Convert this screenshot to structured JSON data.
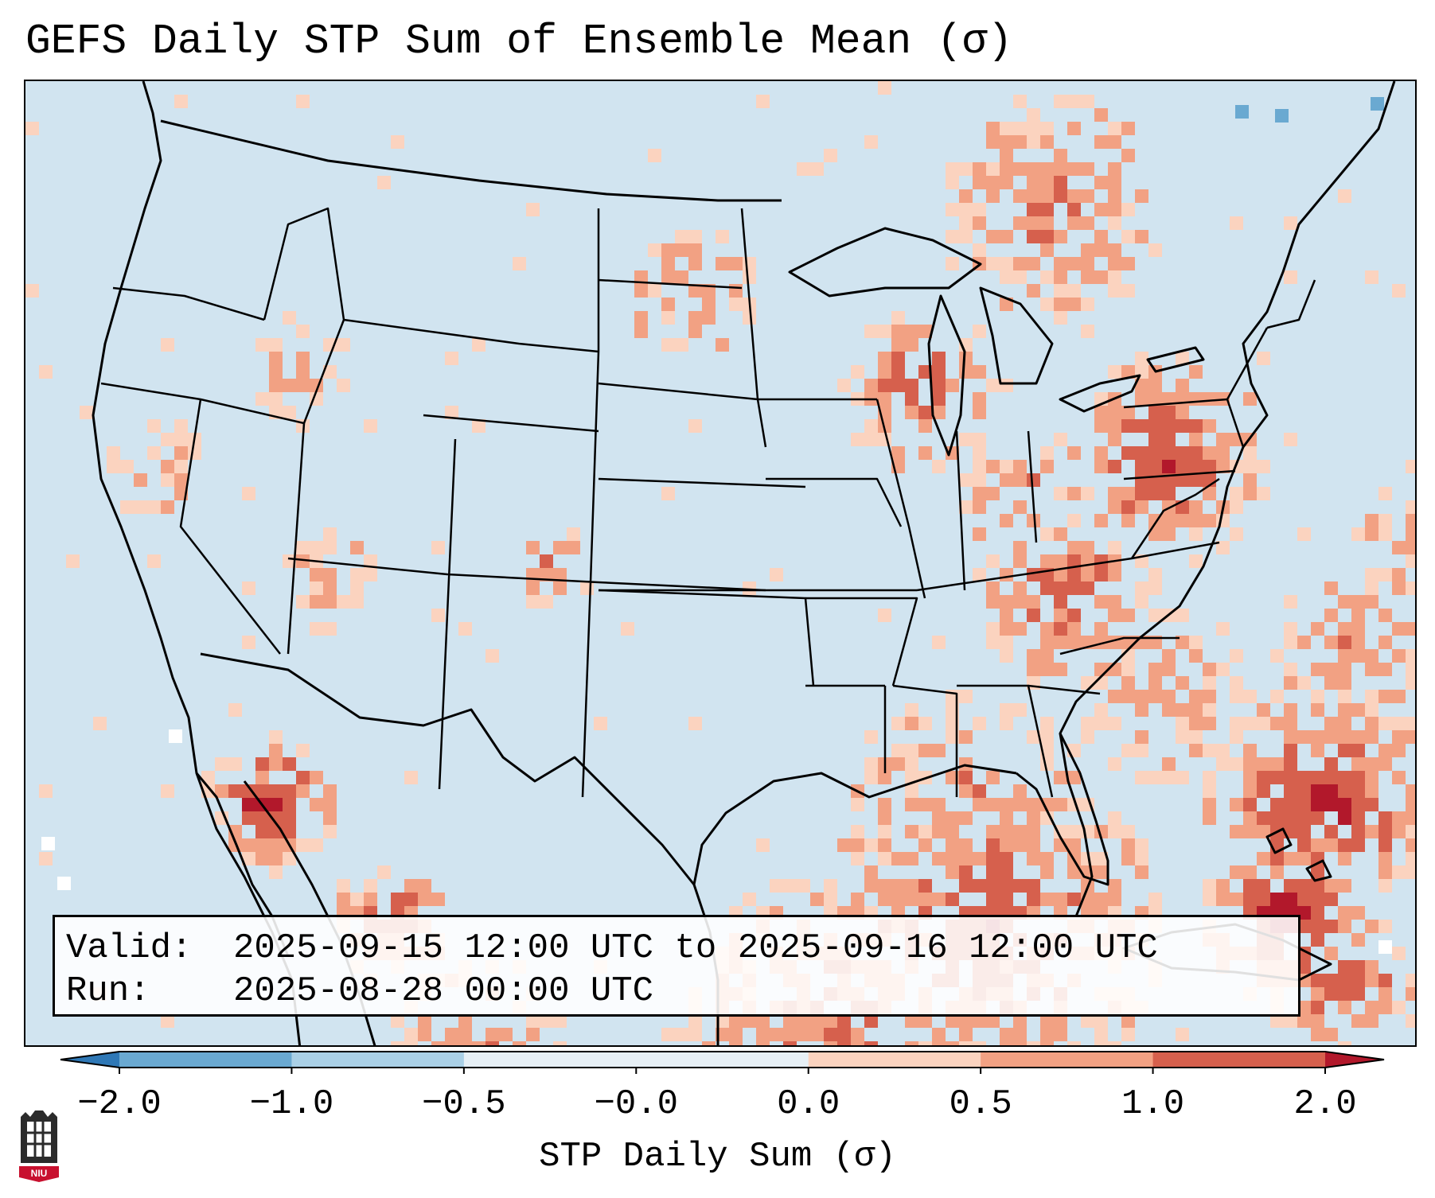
{
  "title": "GEFS Daily STP Sum of Ensemble Mean (σ)",
  "info": {
    "valid_label": "Valid:",
    "valid_value": "2025-09-15 12:00 UTC to 2025-09-16 12:00 UTC",
    "run_label": "Run:",
    "run_value": "2025-08-28 00:00 UTC"
  },
  "colorbar": {
    "label": "STP Daily Sum (σ)",
    "ticks": [
      "−2.0",
      "−1.0",
      "−0.5",
      "−0.0",
      "0.0",
      "0.5",
      "1.0",
      "2.0"
    ],
    "colors": [
      "#2f78b6",
      "#6aa9d1",
      "#aad0e6",
      "#e6eff5",
      "#fbd3bf",
      "#f2a183",
      "#d6604d",
      "#b2182b"
    ],
    "background_color": "#d1e4f0"
  },
  "map": {
    "projection": "Lambert Conformal (CONUS)",
    "ocean_land_color": "#d1e4f0",
    "border_color": "#000000"
  },
  "logo": {
    "text": "NIU"
  }
}
